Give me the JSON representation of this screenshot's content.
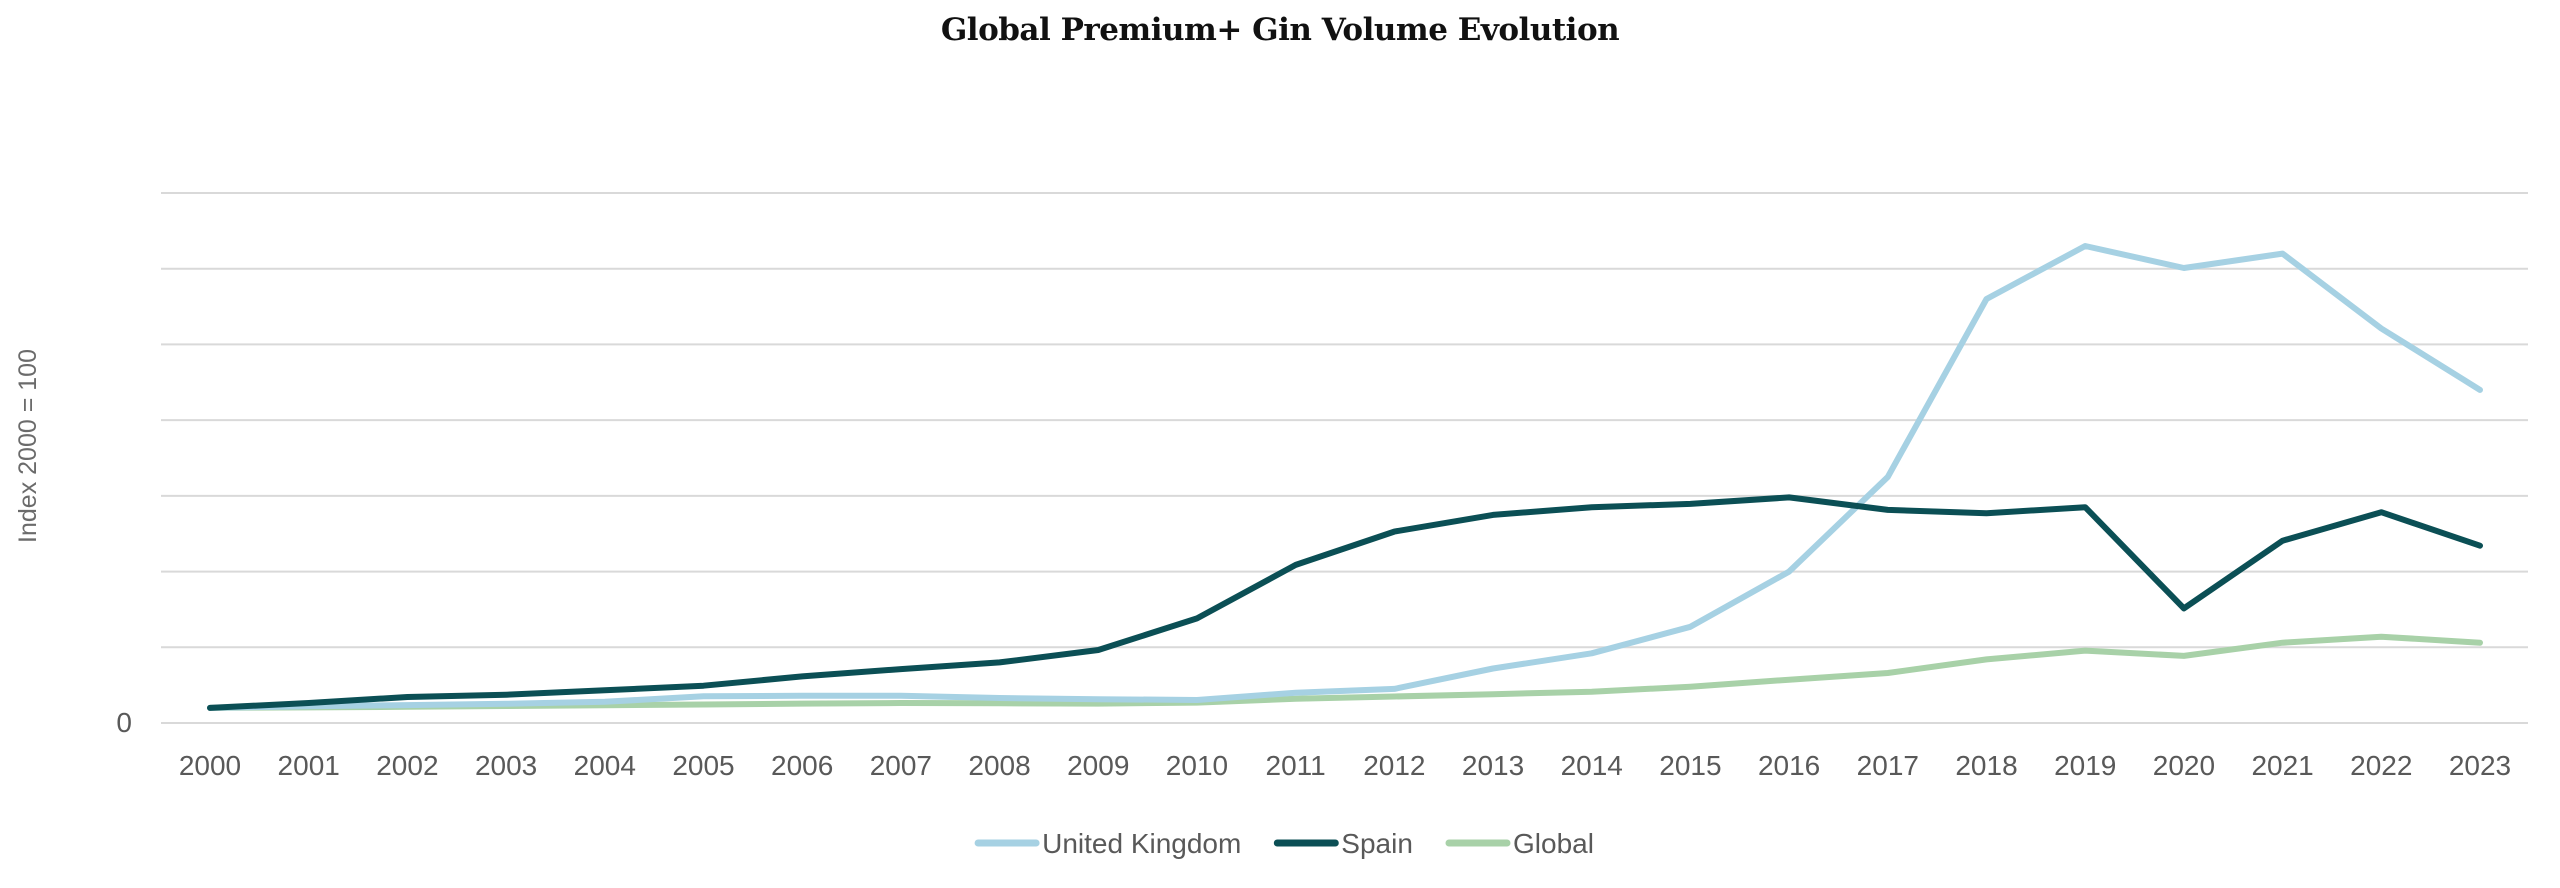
{
  "chart_data": {
    "type": "line",
    "title": "Global Premium+ Gin Volume Evolution",
    "xlabel": "",
    "ylabel": "Index 2000 = 100",
    "ylim": [
      0,
      3500
    ],
    "y_gridlines": [
      0,
      500,
      1000,
      1500,
      2000,
      2500,
      3000,
      3500
    ],
    "y_tick_labels": [
      {
        "value": 0,
        "label": "0"
      }
    ],
    "grid": true,
    "legend_position": "bottom-center",
    "categories": [
      "2000",
      "2001",
      "2002",
      "2003",
      "2004",
      "2005",
      "2006",
      "2007",
      "2008",
      "2009",
      "2010",
      "2011",
      "2012",
      "2013",
      "2014",
      "2015",
      "2016",
      "2017",
      "2018",
      "2019",
      "2020",
      "2021",
      "2022",
      "2023"
    ],
    "series": [
      {
        "name": "United Kingdom",
        "color": "#a6d1e3",
        "values": [
          100,
          110,
          118,
          127,
          140,
          176,
          180,
          180,
          165,
          157,
          152,
          200,
          225,
          360,
          460,
          635,
          1000,
          1625,
          2800,
          3150,
          3005,
          3100,
          2605,
          2200
        ]
      },
      {
        "name": "Spain",
        "color": "#0b4f55",
        "values": [
          100,
          132,
          172,
          187,
          216,
          246,
          308,
          356,
          400,
          482,
          691,
          1044,
          1264,
          1374,
          1425,
          1447,
          1490,
          1407,
          1385,
          1425,
          757,
          1204,
          1392,
          1171
        ]
      },
      {
        "name": "Global",
        "color": "#a8d1a8",
        "values": [
          100,
          103,
          107,
          112,
          117,
          122,
          128,
          132,
          130,
          128,
          135,
          160,
          175,
          190,
          207,
          240,
          286,
          330,
          420,
          478,
          443,
          530,
          570,
          530
        ]
      }
    ]
  }
}
